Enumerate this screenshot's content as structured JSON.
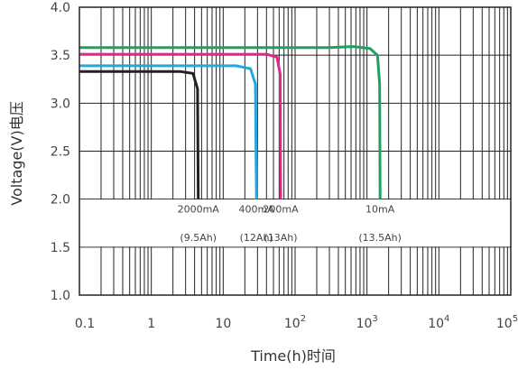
{
  "chart_data": {
    "type": "line",
    "xlabel": "Time(h)时间",
    "ylabel": "Voltage(V)电压",
    "xscale": "log",
    "xlim": [
      0.1,
      100000
    ],
    "ylim": [
      1.0,
      4.0
    ],
    "grid": true,
    "x_tick_labels": [
      "0.1",
      "1",
      "10",
      "10^2",
      "10^3",
      "10^4",
      "10^5"
    ],
    "x_ticks": [
      0.1,
      1,
      10,
      100,
      1000,
      10000,
      100000
    ],
    "y_tick_labels": [
      "1.0",
      "1.5",
      "2.0",
      "2.5",
      "3.0",
      "3.5",
      "4.0"
    ],
    "y_ticks": [
      1.0,
      1.5,
      2.0,
      2.5,
      3.0,
      3.5,
      4.0
    ],
    "label_band": [
      1.5,
      2.0
    ],
    "series": [
      {
        "color": "#222222",
        "points": [
          [
            0.1,
            3.33
          ],
          [
            2.5,
            3.33
          ],
          [
            3.8,
            3.31
          ],
          [
            4.4,
            3.15
          ],
          [
            4.5,
            2.0
          ]
        ]
      },
      {
        "color": "#1fa9e1",
        "points": [
          [
            0.1,
            3.39
          ],
          [
            15,
            3.39
          ],
          [
            24,
            3.36
          ],
          [
            28,
            3.2
          ],
          [
            29,
            2.0
          ]
        ]
      },
      {
        "color": "#e0288a",
        "points": [
          [
            0.1,
            3.51
          ],
          [
            40,
            3.51
          ],
          [
            56,
            3.48
          ],
          [
            62,
            3.3
          ],
          [
            63,
            2.0
          ]
        ]
      },
      {
        "color": "#1fa060",
        "points": [
          [
            0.1,
            3.58
          ],
          [
            300,
            3.58
          ],
          [
            650,
            3.59
          ],
          [
            1100,
            3.57
          ],
          [
            1400,
            3.5
          ],
          [
            1500,
            3.2
          ],
          [
            1520,
            2.0
          ]
        ]
      }
    ],
    "annotations": [
      {
        "current": "2000mA",
        "capacity": "(9.5Ah)",
        "x": 4.5
      },
      {
        "current": "400mA",
        "capacity": "(12Ah)",
        "x": 29
      },
      {
        "current": "200mA",
        "capacity": "(13Ah)",
        "x": 63
      },
      {
        "current": "10mA",
        "capacity": "(13.5Ah)",
        "x": 1520
      }
    ]
  }
}
